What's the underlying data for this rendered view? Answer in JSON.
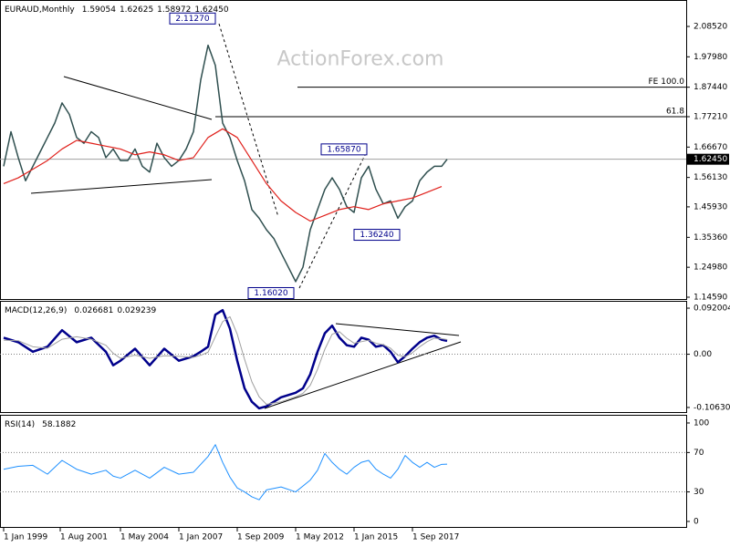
{
  "chart_data": [
    {
      "type": "line",
      "title": "EURAUD,Monthly",
      "title_values": [
        "1.59054",
        "1.62625",
        "1.58972",
        "1.62450"
      ],
      "watermark": "ActionForex.com",
      "xlim": [
        -2,
        374
      ],
      "ylim": [
        1.1396,
        2.1769
      ],
      "yticks": [
        {
          "value": 2.0852,
          "label": "2.08520"
        },
        {
          "value": 1.9798,
          "label": "1.97980"
        },
        {
          "value": 1.8744,
          "label": "1.87440"
        },
        {
          "value": 1.7721,
          "label": "1.77210"
        },
        {
          "value": 1.6667,
          "label": "1.66670"
        },
        {
          "value": 1.5613,
          "label": "1.56130"
        },
        {
          "value": 1.4593,
          "label": "1.45930"
        },
        {
          "value": 1.3536,
          "label": "1.35360"
        },
        {
          "value": 1.2498,
          "label": "1.24980"
        },
        {
          "value": 1.1459,
          "label": "1.14590"
        }
      ],
      "series": [
        {
          "name": "EURAUD",
          "color": "#2f4f4f",
          "width": 1.5,
          "x": [
            0,
            4,
            8,
            12,
            16,
            20,
            24,
            28,
            32,
            36,
            40,
            44,
            48,
            52,
            56,
            60,
            64,
            68,
            72,
            76,
            80,
            84,
            88,
            92,
            96,
            100,
            104,
            108,
            112,
            116,
            120,
            124,
            128,
            132,
            136,
            140,
            144,
            148,
            152,
            156,
            160,
            164,
            168,
            172,
            176,
            180,
            184,
            188,
            192,
            196,
            200,
            204,
            208,
            212,
            216,
            220,
            224,
            228,
            232,
            236,
            240,
            243
          ],
          "values": [
            1.6,
            1.72,
            1.63,
            1.55,
            1.6,
            1.65,
            1.7,
            1.75,
            1.82,
            1.78,
            1.7,
            1.68,
            1.72,
            1.7,
            1.63,
            1.66,
            1.62,
            1.62,
            1.66,
            1.6,
            1.58,
            1.68,
            1.63,
            1.6,
            1.62,
            1.66,
            1.72,
            1.9,
            2.02,
            1.95,
            1.75,
            1.7,
            1.62,
            1.55,
            1.45,
            1.42,
            1.38,
            1.35,
            1.3,
            1.25,
            1.2,
            1.25,
            1.38,
            1.45,
            1.52,
            1.56,
            1.52,
            1.46,
            1.44,
            1.56,
            1.6,
            1.52,
            1.47,
            1.48,
            1.42,
            1.46,
            1.48,
            1.55,
            1.58,
            1.6,
            1.6,
            1.6245
          ]
        },
        {
          "name": "MA",
          "color": "#e0201b",
          "width": 1.2,
          "x": [
            0,
            8,
            16,
            24,
            32,
            40,
            48,
            56,
            64,
            72,
            80,
            88,
            96,
            104,
            112,
            120,
            128,
            136,
            144,
            152,
            160,
            168,
            176,
            184,
            192,
            200,
            208,
            216,
            224,
            232,
            240
          ],
          "values": [
            1.54,
            1.56,
            1.59,
            1.62,
            1.66,
            1.69,
            1.68,
            1.67,
            1.66,
            1.64,
            1.65,
            1.64,
            1.62,
            1.63,
            1.7,
            1.73,
            1.7,
            1.62,
            1.54,
            1.48,
            1.44,
            1.41,
            1.43,
            1.45,
            1.46,
            1.45,
            1.47,
            1.48,
            1.49,
            1.51,
            1.53
          ]
        }
      ],
      "levels": [
        {
          "label": "FE 100.0",
          "value": 1.8744,
          "from_x": 161
        },
        {
          "label": "61.8",
          "value": 1.7721,
          "from_x": 116
        },
        {
          "label": "1.62450",
          "value": 1.6245,
          "current": true
        }
      ],
      "annotations": [
        {
          "text": "2.11270",
          "x": 116,
          "y": 2.1127
        },
        {
          "text": "1.65870",
          "x": 199,
          "y": 1.6587
        },
        {
          "text": "1.36240",
          "x": 217,
          "y": 1.3624
        },
        {
          "text": "1.16020",
          "x": 159,
          "y": 1.1602
        }
      ]
    },
    {
      "type": "line",
      "title": "MACD(12,26,9)",
      "title_values": [
        "0.026681",
        "0.029239"
      ],
      "xlim": [
        -2,
        374
      ],
      "ylim": [
        -0.1155,
        0.1066
      ],
      "yticks": [
        0.092004,
        {
          "value": 0,
          "label": "0.00"
        },
        -0.106308
      ],
      "series": [
        {
          "name": "MACD",
          "color": "#00008b",
          "width": 2.5,
          "x": [
            0,
            8,
            16,
            24,
            32,
            40,
            48,
            56,
            60,
            64,
            72,
            80,
            88,
            96,
            104,
            108,
            112,
            116,
            120,
            124,
            128,
            132,
            136,
            140,
            144,
            152,
            160,
            164,
            168,
            172,
            176,
            180,
            184,
            188,
            192,
            196,
            200,
            204,
            208,
            212,
            216,
            220,
            224,
            228,
            232,
            236,
            240,
            243
          ],
          "values": [
            0.033,
            0.024,
            0.005,
            0.015,
            0.048,
            0.024,
            0.033,
            0.005,
            -0.022,
            -0.013,
            0.011,
            -0.022,
            0.011,
            -0.013,
            -0.004,
            0.005,
            0.015,
            0.079,
            0.088,
            0.051,
            -0.013,
            -0.068,
            -0.095,
            -0.108,
            -0.104,
            -0.086,
            -0.077,
            -0.068,
            -0.04,
            0.005,
            0.042,
            0.057,
            0.033,
            0.018,
            0.015,
            0.033,
            0.029,
            0.015,
            0.018,
            0.005,
            -0.016,
            -0.004,
            0.011,
            0.024,
            0.033,
            0.037,
            0.029,
            0.026681
          ]
        },
        {
          "name": "Signal",
          "color": "#a0a0a0",
          "width": 1,
          "x": [
            0,
            8,
            16,
            24,
            32,
            40,
            48,
            56,
            60,
            64,
            72,
            80,
            88,
            96,
            104,
            108,
            112,
            116,
            120,
            124,
            128,
            132,
            136,
            140,
            144,
            152,
            160,
            164,
            168,
            172,
            176,
            180,
            184,
            188,
            192,
            196,
            200,
            204,
            208,
            212,
            216,
            220,
            224,
            228,
            232,
            236,
            240,
            243
          ],
          "values": [
            0.028,
            0.027,
            0.015,
            0.012,
            0.03,
            0.035,
            0.03,
            0.018,
            0.002,
            -0.008,
            -0.002,
            -0.008,
            -0.003,
            -0.004,
            -0.006,
            -0.002,
            0.004,
            0.035,
            0.065,
            0.075,
            0.04,
            -0.01,
            -0.055,
            -0.085,
            -0.1,
            -0.095,
            -0.085,
            -0.078,
            -0.062,
            -0.03,
            0.01,
            0.04,
            0.045,
            0.032,
            0.022,
            0.025,
            0.028,
            0.022,
            0.019,
            0.012,
            -0.002,
            -0.005,
            0.003,
            0.015,
            0.025,
            0.032,
            0.031,
            0.029239
          ]
        }
      ],
      "levels": [
        {
          "value": 0,
          "style": "dotted"
        }
      ]
    },
    {
      "type": "line",
      "title": "RSI(14)",
      "title_values": [
        "58.1882"
      ],
      "xlim": [
        -2,
        374
      ],
      "ylim": [
        -5.6,
        108.3
      ],
      "yticks": [
        100,
        70,
        30,
        0
      ],
      "xticks": [
        {
          "value": 0,
          "label": "1 Jan 1999"
        },
        {
          "value": 31,
          "label": "1 Aug 2001"
        },
        {
          "value": 64,
          "label": "1 May 2004"
        },
        {
          "value": 96,
          "label": "1 Jan 2007"
        },
        {
          "value": 128,
          "label": "1 Sep 2009"
        },
        {
          "value": 160,
          "label": "1 May 2012"
        },
        {
          "value": 192,
          "label": "1 Jan 2015"
        },
        {
          "value": 224,
          "label": "1 Sep 2017"
        }
      ],
      "series": [
        {
          "name": "RSI",
          "color": "#1e90ff",
          "width": 1,
          "x": [
            0,
            8,
            16,
            24,
            32,
            40,
            48,
            56,
            60,
            64,
            72,
            80,
            88,
            96,
            104,
            108,
            112,
            116,
            120,
            124,
            128,
            132,
            136,
            140,
            144,
            152,
            160,
            164,
            168,
            172,
            176,
            180,
            184,
            188,
            192,
            196,
            200,
            204,
            208,
            212,
            216,
            220,
            224,
            228,
            232,
            236,
            240,
            243
          ],
          "values": [
            53,
            56,
            57,
            48,
            62,
            53,
            48,
            52,
            46,
            44,
            52,
            44,
            55,
            48,
            50,
            58,
            66,
            78,
            60,
            45,
            34,
            30,
            25,
            22,
            32,
            35,
            30,
            36,
            42,
            52,
            69,
            60,
            53,
            48,
            55,
            60,
            62,
            53,
            48,
            44,
            53,
            67,
            60,
            55,
            60,
            55,
            58,
            58.1882
          ]
        }
      ],
      "levels": [
        {
          "value": 70,
          "style": "dotted"
        },
        {
          "value": 30,
          "style": "dotted"
        }
      ]
    }
  ]
}
